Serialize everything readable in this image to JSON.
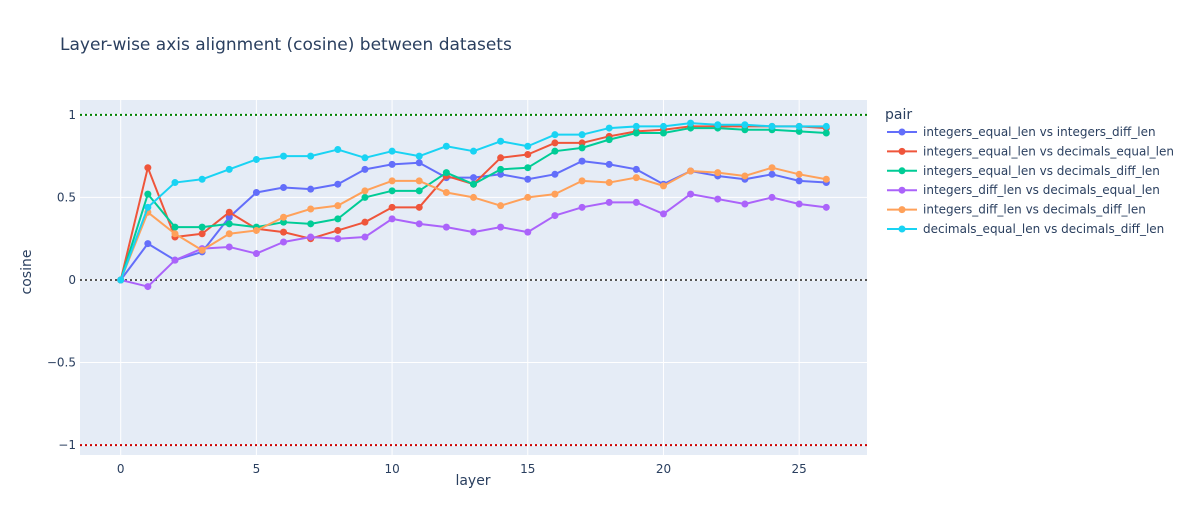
{
  "chart_data": {
    "type": "line",
    "title": "Layer-wise axis alignment (cosine) between datasets",
    "xlabel": "layer",
    "ylabel": "cosine",
    "xlim": [
      -1.5,
      27.5
    ],
    "ylim": [
      -1.06,
      1.09
    ],
    "xticks": [
      0,
      5,
      10,
      15,
      20,
      25
    ],
    "yticks": [
      1,
      0.5,
      0,
      -0.5,
      -1
    ],
    "ytick_labels": [
      "1",
      "0.5",
      "0",
      "−0.5",
      "−1"
    ],
    "grid": true,
    "legend_title": "pair",
    "legend_position": "right",
    "reference_lines": [
      {
        "y": 1,
        "color": "#008000",
        "style": "dotted"
      },
      {
        "y": 0,
        "color": "#555555",
        "style": "dotted"
      },
      {
        "y": -1,
        "color": "#cc0000",
        "style": "dotted"
      }
    ],
    "x": [
      0,
      1,
      2,
      3,
      4,
      5,
      6,
      7,
      8,
      9,
      10,
      11,
      12,
      13,
      14,
      15,
      16,
      17,
      18,
      19,
      20,
      21,
      22,
      23,
      24,
      25,
      26
    ],
    "series": [
      {
        "name": "integers_equal_len vs integers_diff_len",
        "color": "#636efa",
        "values": [
          0,
          0.22,
          0.12,
          0.17,
          0.38,
          0.53,
          0.56,
          0.55,
          0.58,
          0.67,
          0.7,
          0.71,
          0.62,
          0.62,
          0.64,
          0.61,
          0.64,
          0.72,
          0.7,
          0.67,
          0.58,
          0.66,
          0.63,
          0.61,
          0.64,
          0.6,
          0.59
        ]
      },
      {
        "name": "integers_equal_len vs decimals_equal_len",
        "color": "#ef553b",
        "values": [
          0,
          0.68,
          0.26,
          0.28,
          0.41,
          0.31,
          0.29,
          0.25,
          0.3,
          0.35,
          0.44,
          0.44,
          0.63,
          0.58,
          0.74,
          0.76,
          0.83,
          0.83,
          0.87,
          0.9,
          0.91,
          0.93,
          0.93,
          0.93,
          0.93,
          0.93,
          0.92
        ]
      },
      {
        "name": "integers_equal_len vs decimals_diff_len",
        "color": "#00cc96",
        "values": [
          0,
          0.52,
          0.32,
          0.32,
          0.34,
          0.32,
          0.35,
          0.34,
          0.37,
          0.5,
          0.54,
          0.54,
          0.65,
          0.58,
          0.67,
          0.68,
          0.78,
          0.8,
          0.85,
          0.89,
          0.89,
          0.92,
          0.92,
          0.91,
          0.91,
          0.9,
          0.89
        ]
      },
      {
        "name": "integers_diff_len vs decimals_equal_len",
        "color": "#ab63fa",
        "values": [
          0,
          -0.04,
          0.12,
          0.19,
          0.2,
          0.16,
          0.23,
          0.26,
          0.25,
          0.26,
          0.37,
          0.34,
          0.32,
          0.29,
          0.32,
          0.29,
          0.39,
          0.44,
          0.47,
          0.47,
          0.4,
          0.52,
          0.49,
          0.46,
          0.5,
          0.46,
          0.44
        ]
      },
      {
        "name": "integers_diff_len vs decimals_diff_len",
        "color": "#ffa15a",
        "values": [
          0,
          0.41,
          0.28,
          0.18,
          0.28,
          0.3,
          0.38,
          0.43,
          0.45,
          0.54,
          0.6,
          0.6,
          0.53,
          0.5,
          0.45,
          0.5,
          0.52,
          0.6,
          0.59,
          0.62,
          0.57,
          0.66,
          0.65,
          0.63,
          0.68,
          0.64,
          0.61
        ]
      },
      {
        "name": "decimals_equal_len vs decimals_diff_len",
        "color": "#19d3f3",
        "values": [
          0,
          0.44,
          0.59,
          0.61,
          0.67,
          0.73,
          0.75,
          0.75,
          0.79,
          0.74,
          0.78,
          0.75,
          0.81,
          0.78,
          0.84,
          0.81,
          0.88,
          0.88,
          0.92,
          0.93,
          0.93,
          0.95,
          0.94,
          0.94,
          0.93,
          0.93,
          0.93
        ]
      }
    ]
  }
}
